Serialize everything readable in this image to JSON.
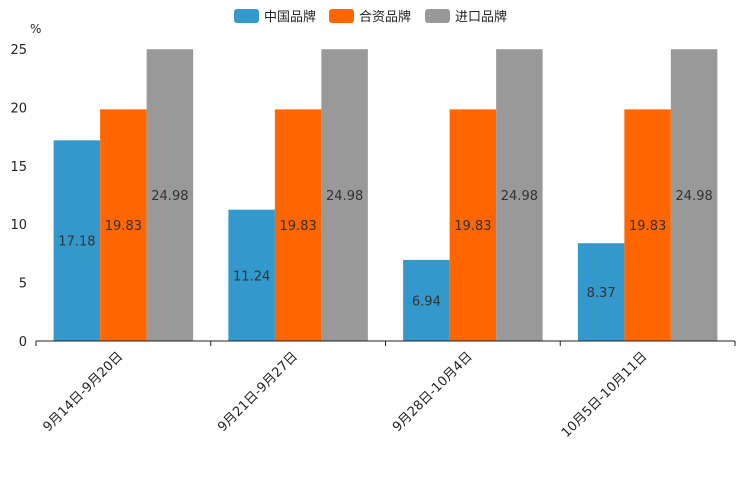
{
  "chart_data": {
    "type": "bar",
    "title": "",
    "xlabel": "",
    "ylabel": "%",
    "ylim": [
      0,
      25
    ],
    "yticks": [
      "0",
      "5",
      "10",
      "15",
      "20",
      "25"
    ],
    "legend_position": "top-center",
    "grid": false,
    "categories": [
      "9月14日-9月20日",
      "9月21日-9月27日",
      "9月28日-10月4日",
      "10月5日-10月11日"
    ],
    "series": [
      {
        "name": "中国品牌",
        "color": "#3399cc",
        "values": [
          17.18,
          11.24,
          6.94,
          8.37
        ],
        "labels": [
          "17.18",
          "11.24",
          "6.94",
          "8.37"
        ]
      },
      {
        "name": "合资品牌",
        "color": "#ff6600",
        "values": [
          19.83,
          19.83,
          19.83,
          19.83
        ],
        "labels": [
          "19.83",
          "19.83",
          "19.83",
          "19.83"
        ]
      },
      {
        "name": "进口品牌",
        "color": "#999999",
        "values": [
          24.98,
          24.98,
          24.98,
          24.98
        ],
        "labels": [
          "24.98",
          "24.98",
          "24.98",
          "24.98"
        ]
      }
    ]
  }
}
